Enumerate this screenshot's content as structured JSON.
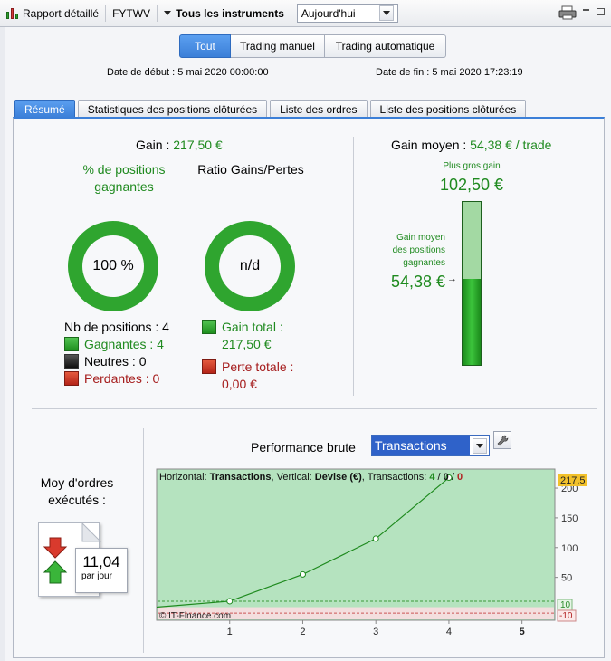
{
  "toolbar": {
    "report_label": "Rapport détaillé",
    "account": "FYTWV",
    "instruments_label": "Tous les instruments",
    "period_value": "Aujourd'hui"
  },
  "modes": [
    "Tout",
    "Trading manuel",
    "Trading automatique"
  ],
  "dates": {
    "start": "Date de début : 5 mai 2020 00:00:00",
    "end": "Date de fin : 5 mai 2020 17:23:19"
  },
  "tabs": [
    "Résumé",
    "Statistiques des positions clôturées",
    "Liste des ordres",
    "Liste des positions clôturées"
  ],
  "summary": {
    "gain_label": "Gain : ",
    "gain_value": "217,50 €",
    "pct_win_title": "% de positions gagnantes",
    "pct_win_value": "100 %",
    "pct_win_fraction": 1.0,
    "ratio_title": "Ratio Gains/Pertes",
    "ratio_value": "n/d",
    "nb_positions": "Nb de positions : 4",
    "gagnantes": "Gagnantes : 4",
    "neutres": "Neutres : 0",
    "perdantes": "Perdantes : 0",
    "gain_total_label": "Gain total :",
    "gain_total_value": "217,50 €",
    "perte_totale_label": "Perte totale :",
    "perte_totale_value": "0,00 €"
  },
  "avg_gain": {
    "label": "Gain moyen : ",
    "value": "54,38 € / trade",
    "max_label": "Plus gros gain",
    "max_value": "102,50 €",
    "avg_win_label": "Gain moyen des positions gagnantes",
    "avg_win_value": "54,38 €",
    "avg_win_fraction": 0.5305
  },
  "orders": {
    "title": "Moy d'ordres exécutés :",
    "value": "11,04",
    "unit": "par jour"
  },
  "performance": {
    "title": "Performance brute",
    "selector": "Transactions",
    "legend_h": "Horizontal: ",
    "legend_h_val": "Transactions",
    "legend_v": ", Vertical: ",
    "legend_v_val": "Devise (€)",
    "legend_t": ", Transactions: ",
    "legend_win": "4",
    "legend_sep1": " / ",
    "legend_neutral": "0",
    "legend_sep2": " / ",
    "legend_loss": "0",
    "watermark": "© IT-Finance.com",
    "last_value_badge": "217,5",
    "pos_line_label": "10",
    "neg_line_label": "-10"
  },
  "chart_data": {
    "type": "line",
    "x": [
      0,
      1,
      2,
      3,
      4
    ],
    "values": [
      0,
      10,
      55,
      115,
      217.5
    ],
    "xticks": [
      "1",
      "2",
      "3",
      "4",
      "5"
    ],
    "yticks": [
      "200",
      "150",
      "100",
      "50"
    ],
    "xlim": [
      0.0,
      5.45
    ],
    "ylim": [
      -22,
      232
    ],
    "colors": {
      "line": "#1e8a1e",
      "bg": "#b5e3bf",
      "neg_bg": "#f3dede",
      "badge": "#f2c12a"
    }
  }
}
